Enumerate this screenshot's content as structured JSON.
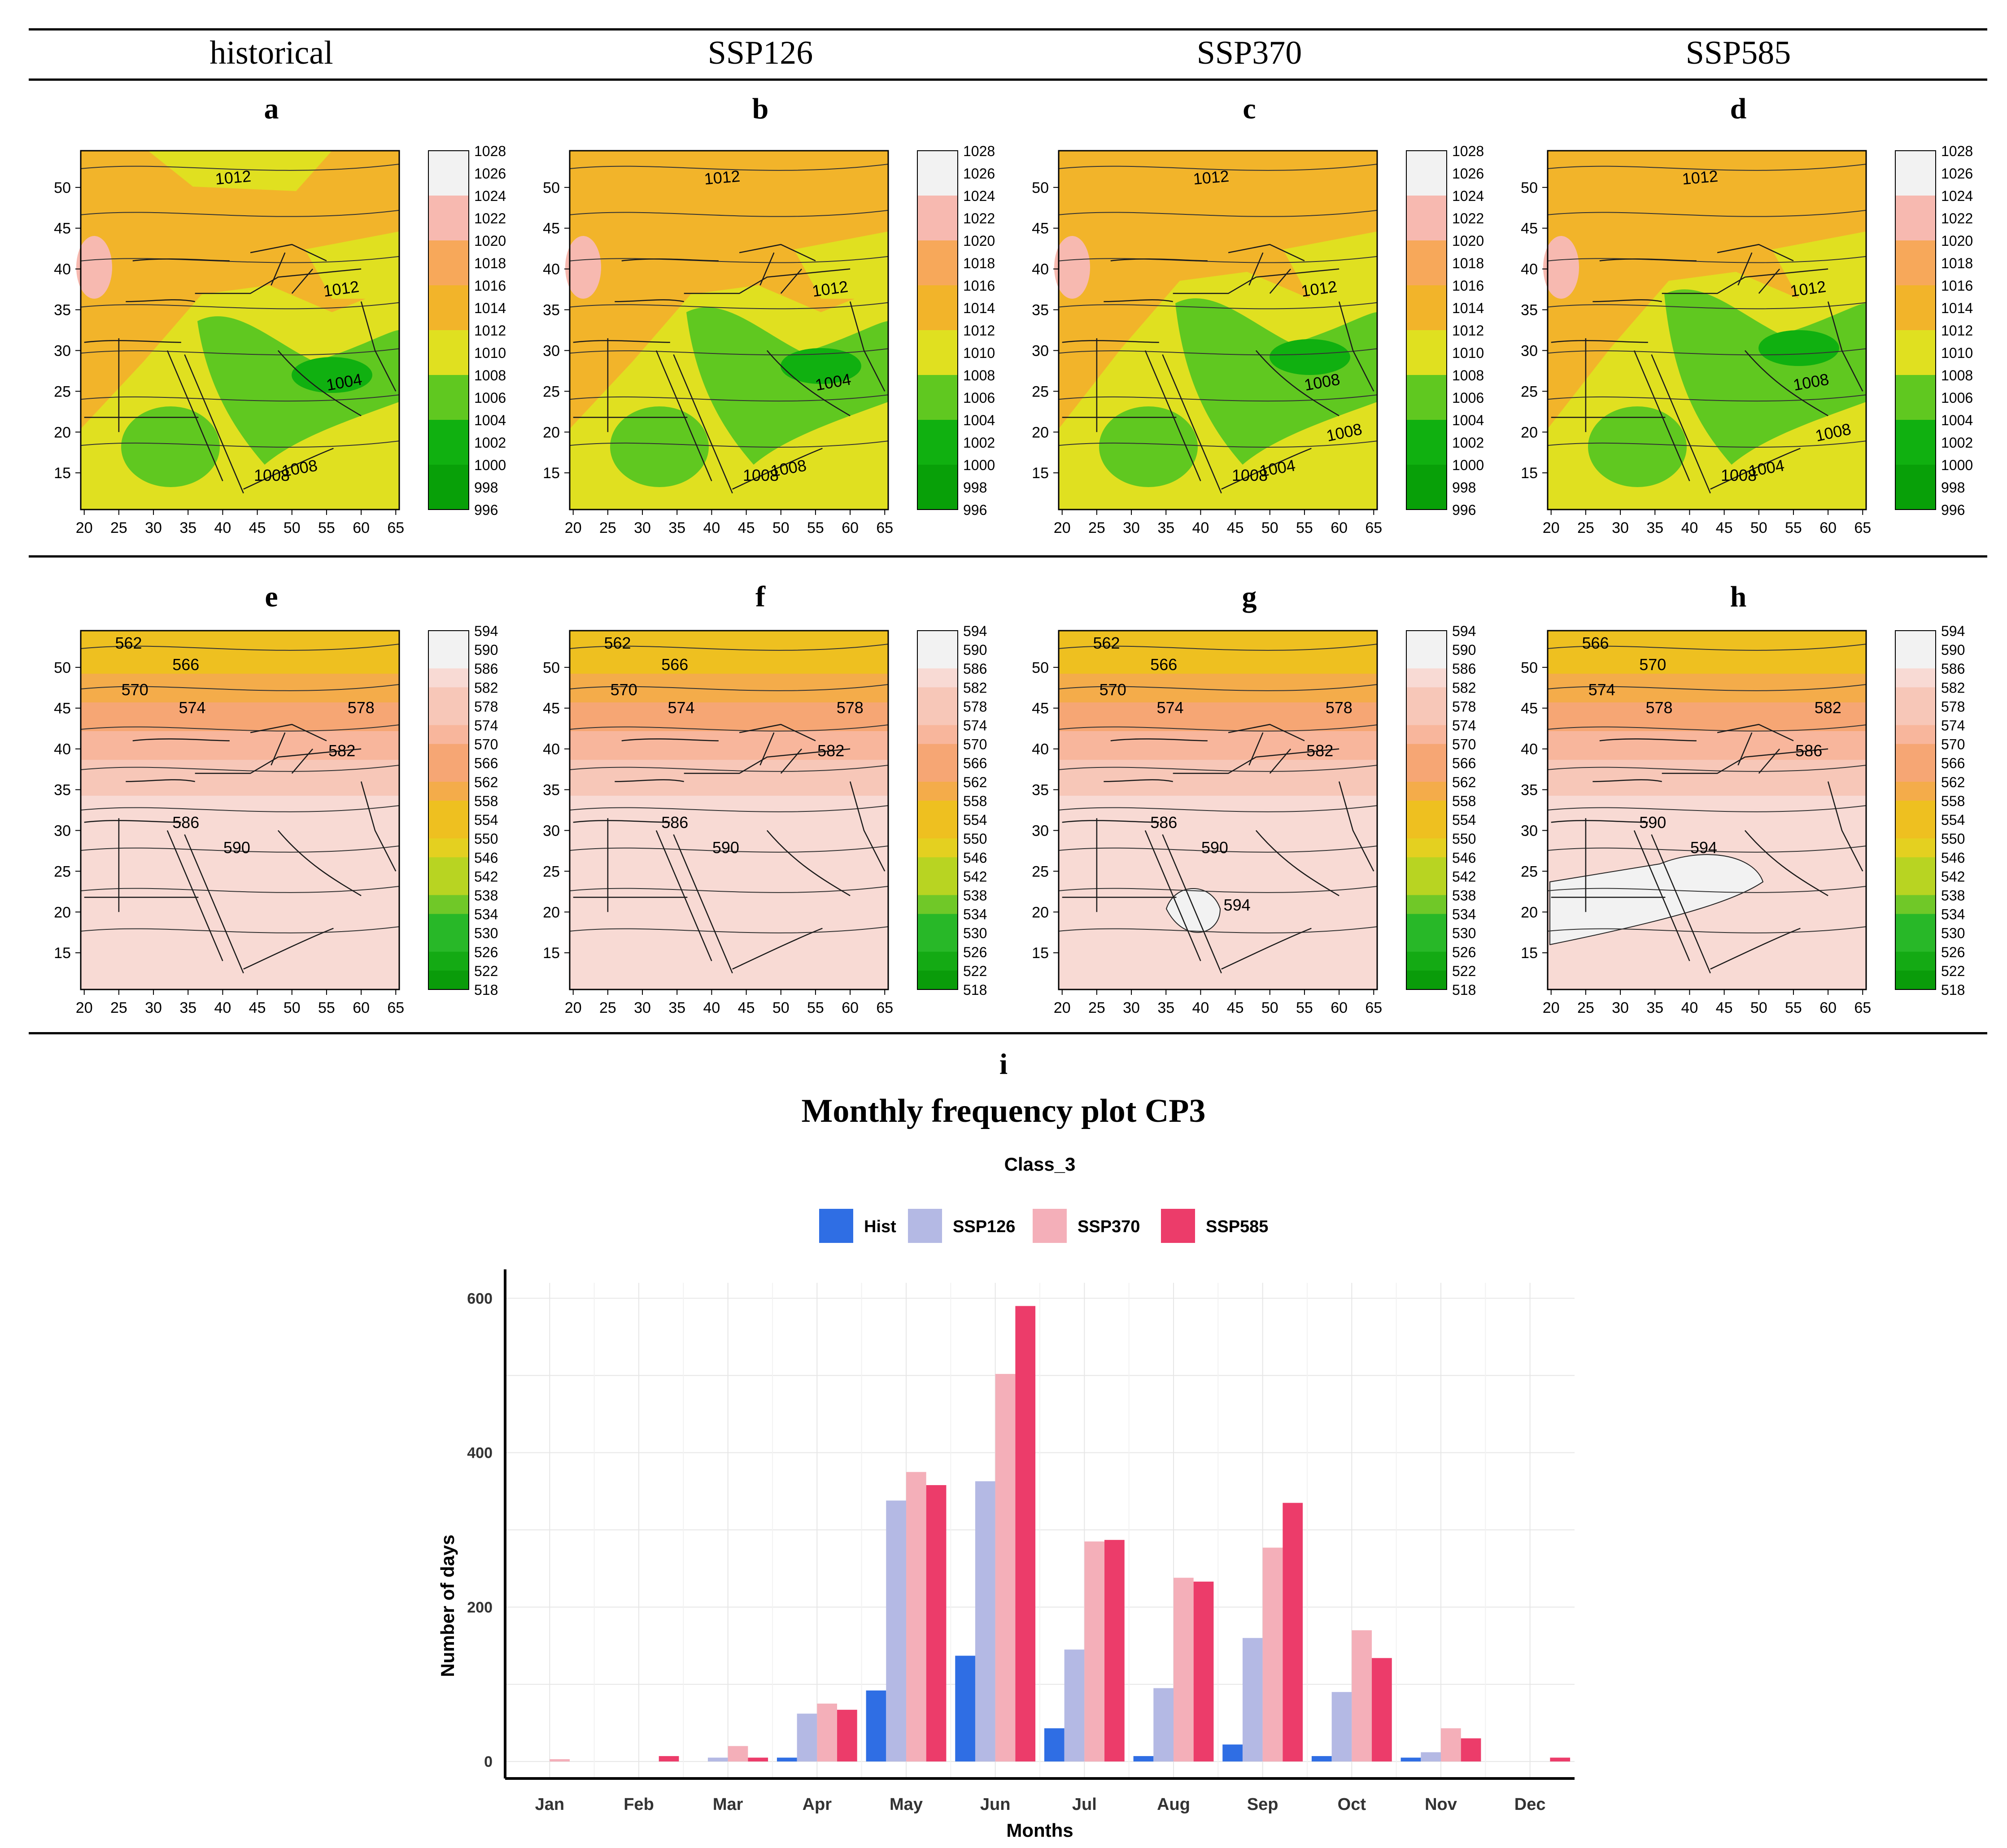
{
  "colors": {
    "mslp_scale": [
      "#f2f2f2",
      "#f7b9b0",
      "#f7a85a",
      "#f2b42a",
      "#e0e020",
      "#60c820",
      "#10b010",
      "#08a008"
    ],
    "geo_scale": [
      "#f2f2f2",
      "#f8dad4",
      "#f7c7b8",
      "#f8b69c",
      "#f6a674",
      "#f4ac4a",
      "#eec020",
      "#e4d020",
      "#b8d422",
      "#70c828",
      "#28b828",
      "#14aa14",
      "#0a9c0a"
    ],
    "hist": "#2f6ee4",
    "ssp126": "#b4b9e4",
    "ssp370": "#f4afb9",
    "ssp585": "#ec3c6a"
  },
  "header": {
    "scenarios": [
      "historical",
      "SSP126",
      "SSP370",
      "SSP585"
    ]
  },
  "maps": {
    "mslp_panels": [
      {
        "letter": "a",
        "labels": [
          "1012",
          "1012",
          "1004",
          "1008",
          "1008"
        ]
      },
      {
        "letter": "b",
        "labels": [
          "1012",
          "1012",
          "1004",
          "1008",
          "1008"
        ]
      },
      {
        "letter": "c",
        "labels": [
          "1012",
          "1012",
          "1008",
          "1004",
          "1008",
          "1008"
        ]
      },
      {
        "letter": "d",
        "labels": [
          "1012",
          "1012",
          "1008",
          "1004",
          "1008",
          "1008"
        ]
      }
    ],
    "geo_panels": [
      {
        "letter": "e",
        "labels": [
          "562",
          "566",
          "570",
          "574",
          "578",
          "582",
          "586",
          "590"
        ]
      },
      {
        "letter": "f",
        "labels": [
          "562",
          "566",
          "570",
          "574",
          "578",
          "582",
          "586",
          "590"
        ]
      },
      {
        "letter": "g",
        "labels": [
          "562",
          "566",
          "570",
          "574",
          "578",
          "582",
          "586",
          "590",
          "594"
        ]
      },
      {
        "letter": "h",
        "labels": [
          "566",
          "570",
          "574",
          "578",
          "582",
          "586",
          "590",
          "594"
        ]
      }
    ],
    "x_ticks": [
      "20",
      "25",
      "30",
      "35",
      "40",
      "45",
      "50",
      "55",
      "60",
      "65"
    ],
    "y_ticks": [
      "50",
      "45",
      "40",
      "35",
      "30",
      "25",
      "20",
      "15"
    ],
    "mslp_colorbar": [
      "1028",
      "1026",
      "1024",
      "1022",
      "1020",
      "1018",
      "1016",
      "1014",
      "1012",
      "1010",
      "1008",
      "1006",
      "1004",
      "1002",
      "1000",
      "998",
      "996"
    ],
    "geo_colorbar": [
      "594",
      "590",
      "586",
      "582",
      "578",
      "574",
      "570",
      "566",
      "562",
      "558",
      "554",
      "550",
      "546",
      "542",
      "538",
      "534",
      "530",
      "526",
      "522",
      "518"
    ]
  },
  "panel_i": {
    "letter": "i",
    "heading": "Monthly frequency plot CP3"
  },
  "chart_data": {
    "type": "bar",
    "title": "Class_3",
    "xlabel": "Months",
    "ylabel": "Number of days",
    "categories": [
      "Jan",
      "Feb",
      "Mar",
      "Apr",
      "May",
      "Jun",
      "Jul",
      "Aug",
      "Sep",
      "Oct",
      "Nov",
      "Dec"
    ],
    "series": [
      {
        "name": "Hist",
        "values": [
          0,
          0,
          0,
          5,
          92,
          137,
          43,
          7,
          22,
          7,
          5,
          0
        ]
      },
      {
        "name": "SSP126",
        "values": [
          0,
          0,
          5,
          62,
          338,
          363,
          145,
          95,
          160,
          90,
          12,
          0
        ]
      },
      {
        "name": "SSP370",
        "values": [
          3,
          0,
          20,
          75,
          375,
          502,
          285,
          238,
          277,
          170,
          43,
          0
        ]
      },
      {
        "name": "SSP585",
        "values": [
          0,
          7,
          5,
          67,
          358,
          590,
          287,
          233,
          335,
          134,
          30,
          5
        ]
      }
    ],
    "yticks": [
      0,
      200,
      400,
      600
    ],
    "ylim": [
      -22,
      620
    ],
    "legend": "top",
    "grid": true
  }
}
